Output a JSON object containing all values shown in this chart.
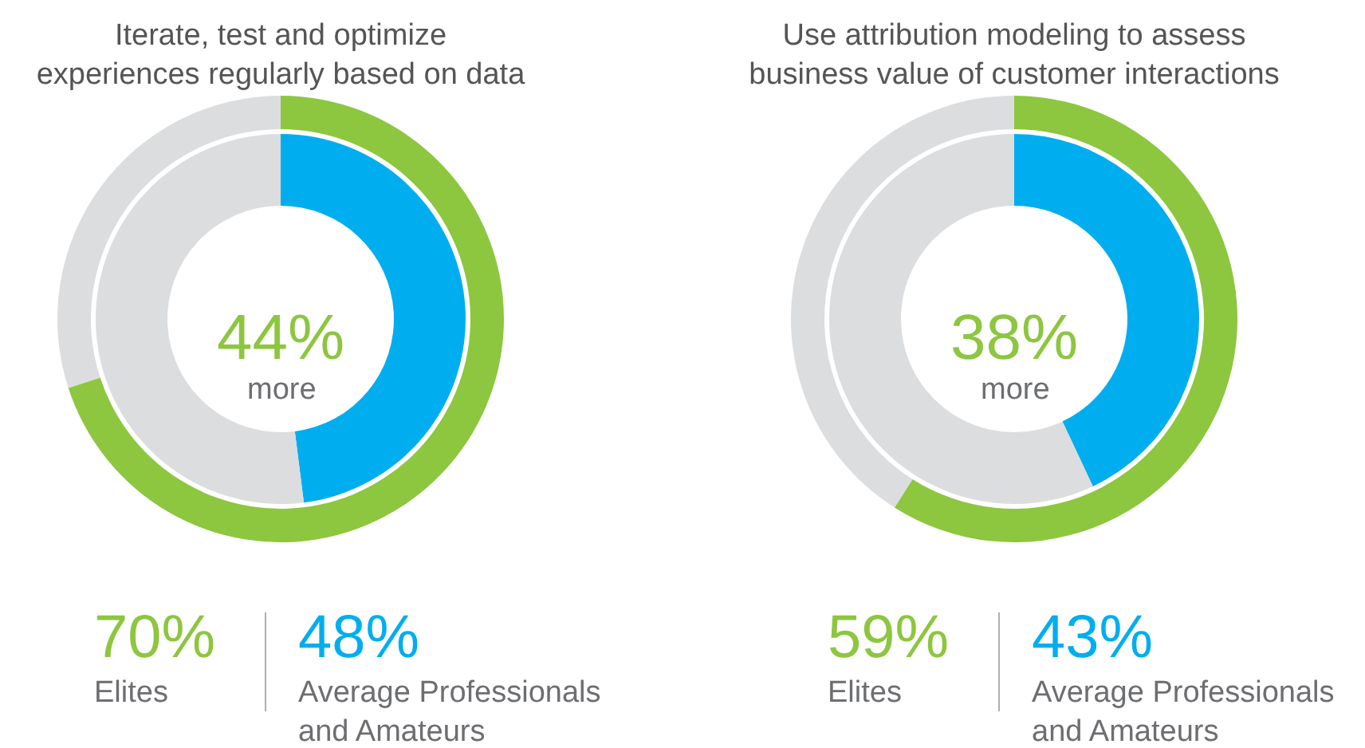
{
  "chart_data": [
    {
      "type": "donut",
      "title": "Iterate, test and optimize experiences regularly based on data",
      "annotations": [
        "44%",
        "more"
      ],
      "series": [
        {
          "name": "Elites",
          "color": "#8dc63f",
          "values": [
            70,
            30
          ],
          "colors": [
            "#8dc63f",
            "#dcdddf"
          ],
          "value_labels": [
            "70%",
            null
          ]
        },
        {
          "name": "Average Professionals and Amateurs",
          "color": "#00aeef",
          "values": [
            48,
            52
          ],
          "colors": [
            "#00aeef",
            "#dcdddf"
          ],
          "value_labels": [
            "48%",
            null
          ]
        }
      ]
    },
    {
      "type": "donut",
      "title": "Use attribution modeling to assess business value of customer interactions",
      "annotations": [
        "38%",
        "more"
      ],
      "series": [
        {
          "name": "Elites",
          "color": "#8dc63f",
          "values": [
            59,
            41
          ],
          "colors": [
            "#8dc63f",
            "#dcdddf"
          ],
          "value_labels": [
            "59%",
            null
          ]
        },
        {
          "name": "Average Professionals and Amateurs",
          "color": "#00aeef",
          "values": [
            43,
            57
          ],
          "colors": [
            "#00aeef",
            "#dcdddf"
          ],
          "value_labels": [
            "43%",
            null
          ]
        }
      ]
    }
  ]
}
